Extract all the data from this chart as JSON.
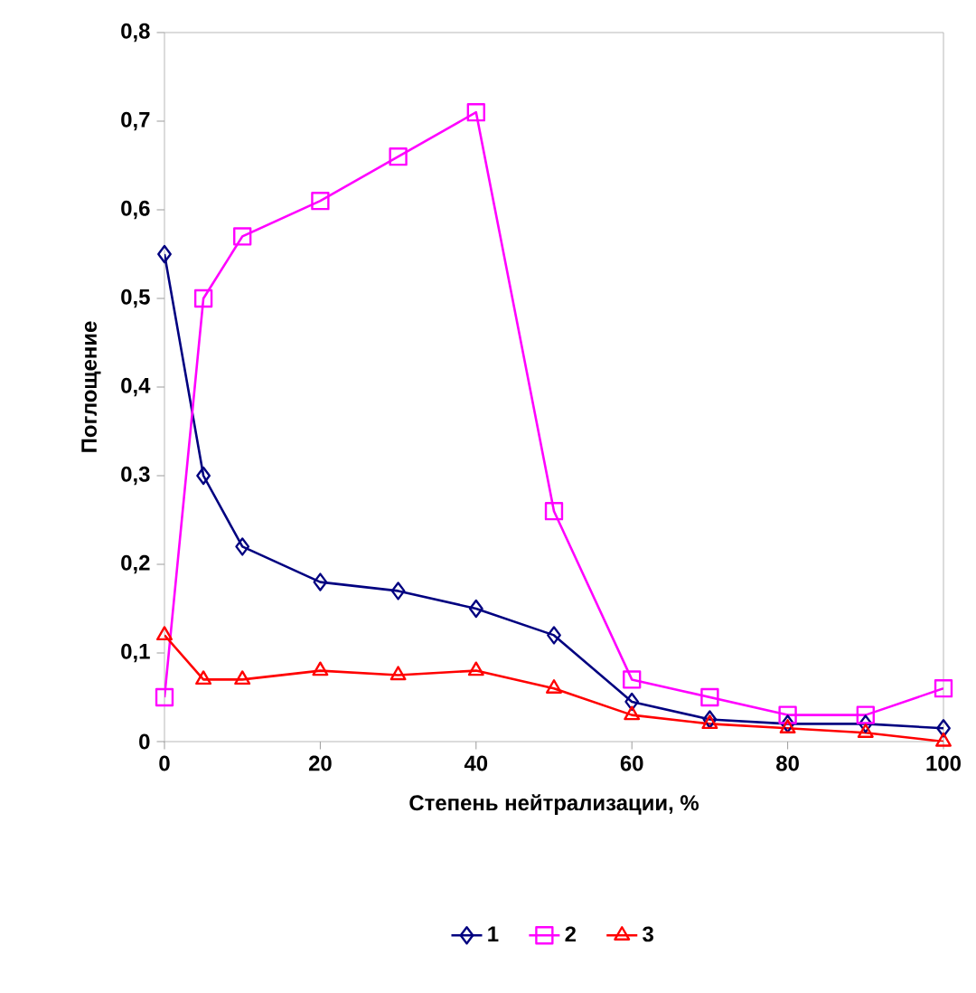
{
  "chart_data": {
    "type": "line",
    "xlabel": "Степень нейтрализации, %",
    "ylabel": "Поглощение",
    "x": [
      0,
      5,
      10,
      20,
      30,
      40,
      50,
      60,
      70,
      80,
      90,
      100
    ],
    "series": [
      {
        "name": "1",
        "color": "#000080",
        "marker": "diamond",
        "values": [
          0.55,
          0.3,
          0.22,
          0.18,
          0.17,
          0.15,
          0.12,
          0.045,
          0.025,
          0.02,
          0.02,
          0.015
        ]
      },
      {
        "name": "2",
        "color": "#ff00ff",
        "marker": "square",
        "values": [
          0.05,
          0.5,
          0.57,
          0.61,
          0.66,
          0.71,
          0.26,
          0.07,
          0.05,
          0.03,
          0.03,
          0.06
        ]
      },
      {
        "name": "3",
        "color": "#ff0000",
        "marker": "triangle",
        "values": [
          0.12,
          0.07,
          0.07,
          0.08,
          0.075,
          0.08,
          0.06,
          0.03,
          0.02,
          0.015,
          0.01,
          0
        ]
      }
    ],
    "xlim": [
      0,
      100
    ],
    "xticks": [
      0,
      20,
      40,
      60,
      80,
      100
    ],
    "ylim": [
      0,
      0.8
    ],
    "yticks": [
      0,
      {
        "value": 0.1,
        "label": "0,1"
      },
      {
        "value": 0.2,
        "label": "0,2"
      },
      {
        "value": 0.3,
        "label": "0,3"
      },
      {
        "value": 0.4,
        "label": "0,4"
      },
      {
        "value": 0.5,
        "label": "0,5"
      },
      {
        "value": 0.6,
        "label": "0,6"
      },
      {
        "value": 0.7,
        "label": "0,7"
      },
      {
        "value": 0.8,
        "label": "0,8"
      }
    ],
    "grid": false,
    "legend": "bottom",
    "line_style": "solid"
  }
}
